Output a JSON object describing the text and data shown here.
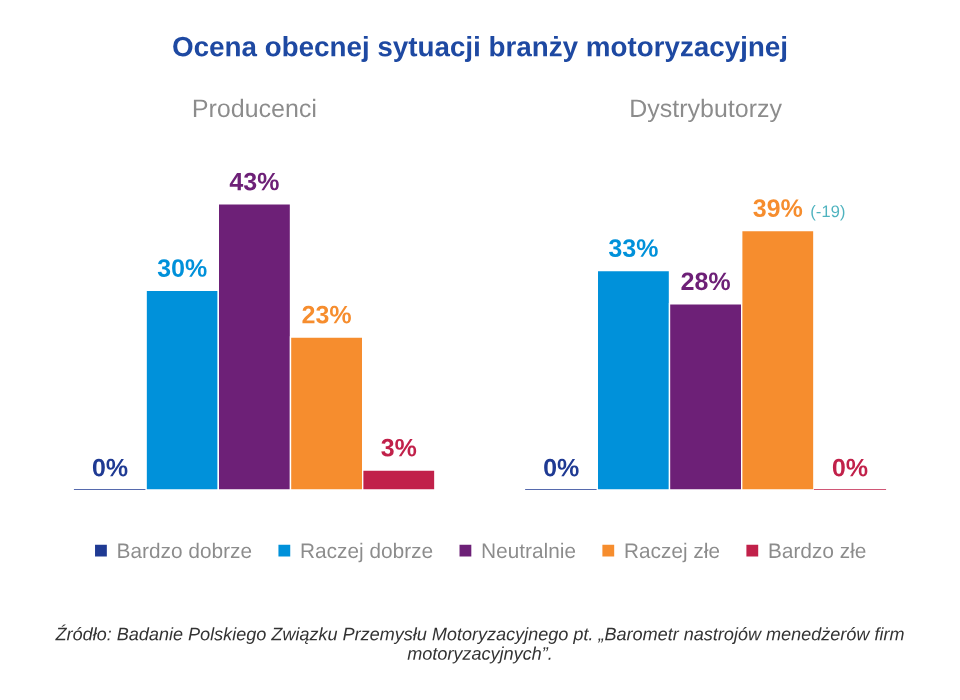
{
  "chart_data": {
    "type": "bar",
    "title": "Ocena obecnej sytuacji branży motoryzacyjnej",
    "categories": [
      "Producenci",
      "Dystrybutorzy"
    ],
    "series": [
      {
        "name": "Bardzo dobrze",
        "color": "#1f3a93",
        "values": [
          0,
          0
        ],
        "value_labels": [
          "0%",
          "0%"
        ]
      },
      {
        "name": "Raczej dobrze",
        "color": "#0091da",
        "values": [
          30,
          33
        ],
        "value_labels": [
          "30%",
          "33%"
        ]
      },
      {
        "name": "Neutralnie",
        "color": "#6d2077",
        "values": [
          43,
          28
        ],
        "value_labels": [
          "43%",
          "28%"
        ]
      },
      {
        "name": "Raczej złe",
        "color": "#f68d2e",
        "values": [
          23,
          39
        ],
        "value_labels": [
          "23%",
          "39%"
        ]
      },
      {
        "name": "Bardzo złe",
        "color": "#c1214a",
        "values": [
          3,
          0
        ],
        "value_labels": [
          "3%",
          "0%"
        ]
      }
    ],
    "legend": "bottom",
    "annotations": [
      "(-19)",
      "Źródło: Badanie Polskiego Związku Przemysłu Motoryzacyjnego pt. „Barometr nastrojów menedżerów firm motoryzacyjnych”."
    ]
  }
}
